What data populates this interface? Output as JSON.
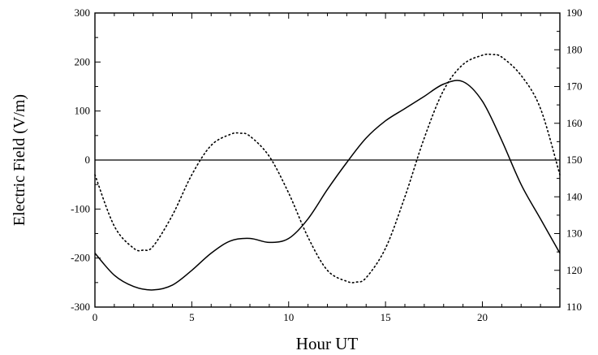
{
  "chart_data": {
    "type": "line",
    "xlabel": "Hour UT",
    "ylabel": "Electric Field (V/m)",
    "xlim": [
      0,
      24
    ],
    "ylim": [
      -300,
      300
    ],
    "y2lim": [
      110,
      190
    ],
    "x_ticks": [
      0,
      5,
      10,
      15,
      20
    ],
    "y_ticks": [
      -300,
      -200,
      -100,
      0,
      100,
      200,
      300
    ],
    "y2_ticks": [
      110,
      120,
      130,
      140,
      150,
      160,
      170,
      180,
      190
    ],
    "zero_line": 0,
    "grid": false,
    "legend": "none",
    "series": [
      {
        "style": "solid",
        "axis": "left",
        "x": [
          0,
          1,
          2,
          3,
          4,
          5,
          6,
          7,
          8,
          9,
          10,
          11,
          12,
          13,
          14,
          15,
          16,
          17,
          18,
          19,
          20,
          21,
          22,
          23,
          24
        ],
        "values": [
          -190,
          -235,
          -258,
          -265,
          -255,
          -225,
          -190,
          -165,
          -160,
          -168,
          -160,
          -120,
          -60,
          -5,
          45,
          80,
          105,
          130,
          155,
          160,
          120,
          40,
          -50,
          -120,
          -190
        ]
      },
      {
        "style": "dotted",
        "axis": "right",
        "x": [
          0,
          1,
          2,
          2.5,
          3,
          4,
          5,
          6,
          7,
          7.5,
          8,
          9,
          10,
          11,
          12,
          13,
          13.5,
          14,
          15,
          16,
          17,
          18,
          19,
          20,
          20.5,
          21,
          22,
          23,
          24
        ],
        "values": [
          146,
          132,
          126,
          125.5,
          126.5,
          135,
          146,
          154,
          157,
          157.3,
          156.5,
          151,
          141,
          129,
          120,
          117,
          116.8,
          118,
          126,
          140,
          156,
          169,
          176,
          178.5,
          178.7,
          178,
          173,
          164,
          146
        ]
      }
    ]
  }
}
